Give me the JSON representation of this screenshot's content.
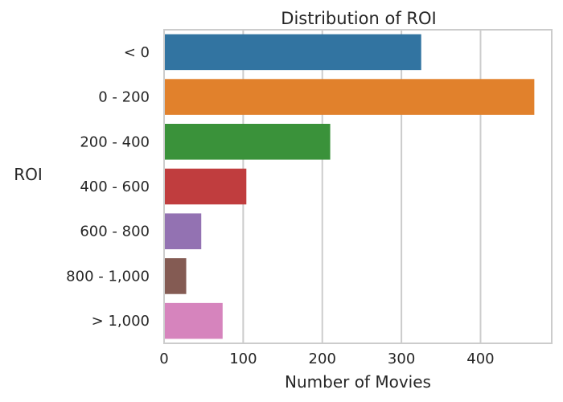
{
  "chart_data": {
    "type": "bar",
    "orientation": "horizontal",
    "title": "Distribution of ROI",
    "xlabel": "Number of Movies",
    "ylabel": "ROI",
    "categories": [
      "< 0",
      "0 - 200",
      "200 - 400",
      "400 - 600",
      "600 - 800",
      "800 - 1,000",
      "> 1,000"
    ],
    "values": [
      325,
      468,
      210,
      104,
      47,
      28,
      74
    ],
    "colors": [
      "#3274a1",
      "#e1812c",
      "#3a923a",
      "#c03d3e",
      "#9372b2",
      "#845b53",
      "#d684bd"
    ],
    "xlim": [
      0,
      490
    ],
    "xticks": [
      0,
      100,
      200,
      300,
      400
    ],
    "xtick_labels": [
      "0",
      "100",
      "200",
      "300",
      "400"
    ],
    "grid": "x",
    "legend": "none"
  }
}
